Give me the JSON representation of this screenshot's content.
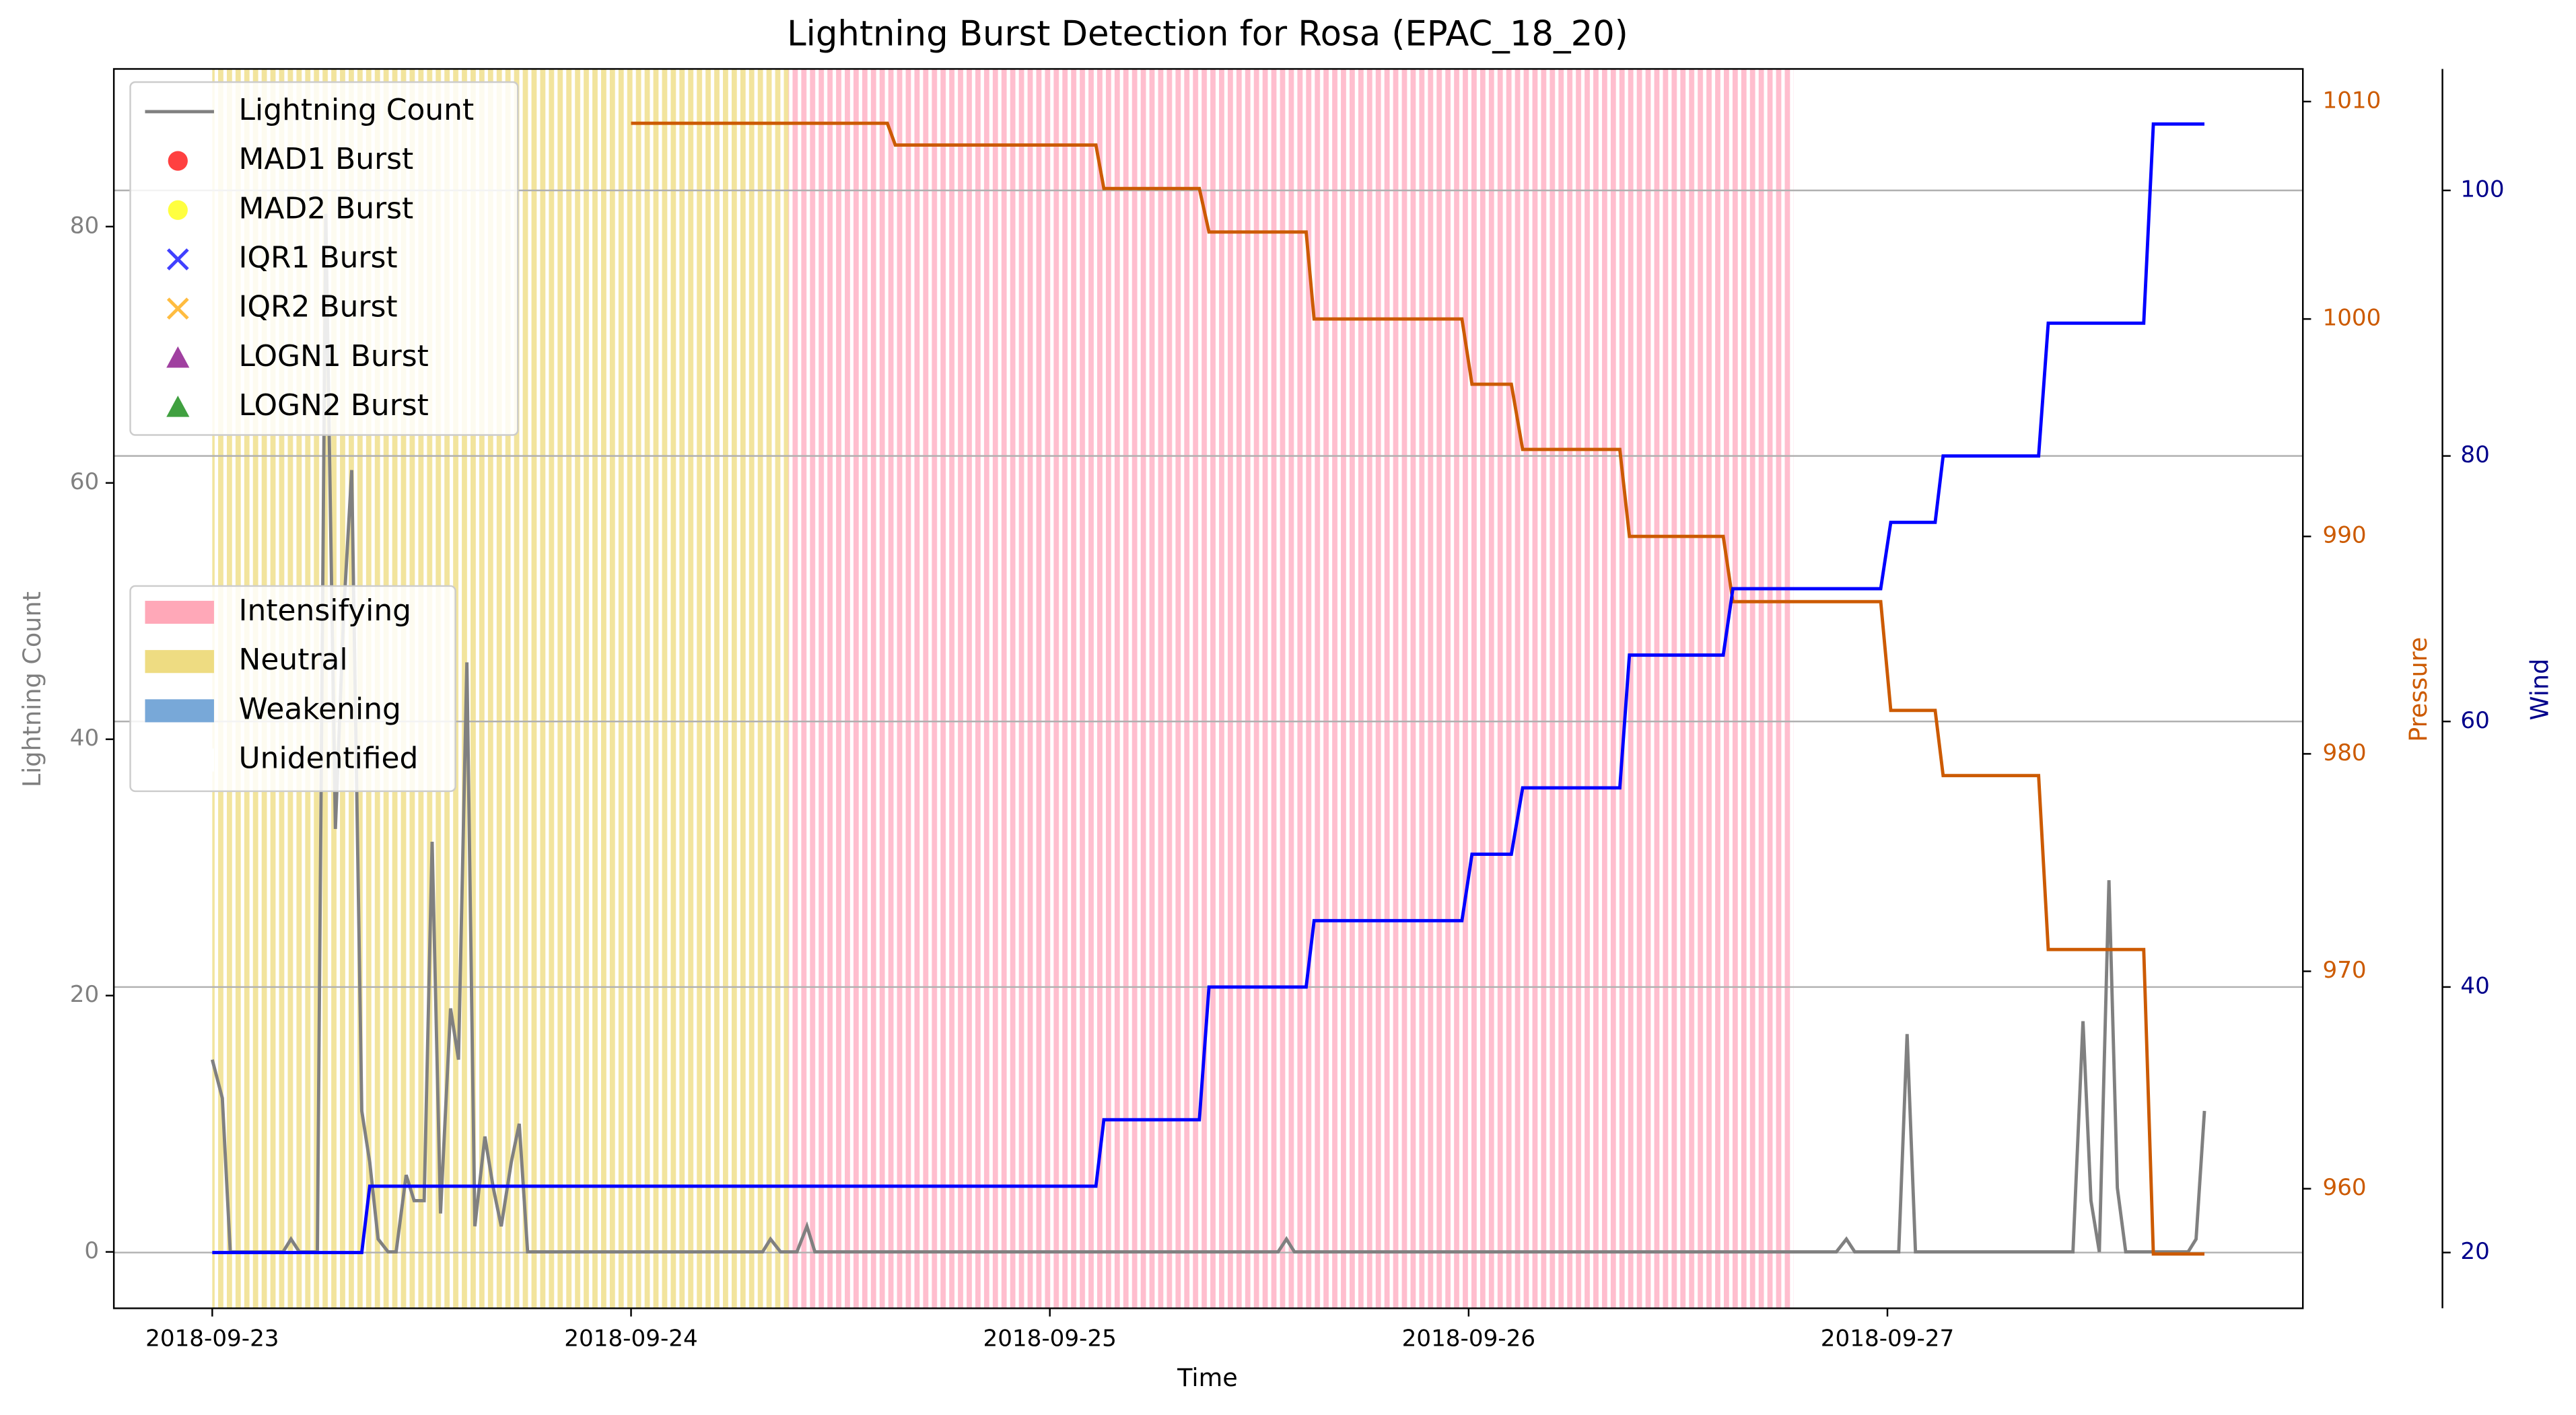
{
  "chart_data": {
    "type": "line",
    "title": "Lightning Burst Detection for Rosa (EPAC_18_20)",
    "xlabel": "Time",
    "ylabel": "Lightning Count",
    "y2label": "Pressure",
    "y3label": "Wind",
    "xlim": [
      -0.235,
      4.992
    ],
    "xticks": [
      {
        "value": 0,
        "label": "2018-09-23"
      },
      {
        "value": 1,
        "label": "2018-09-24"
      },
      {
        "value": 2,
        "label": "2018-09-25"
      },
      {
        "value": 3,
        "label": "2018-09-26"
      },
      {
        "value": 4,
        "label": "2018-09-27"
      }
    ],
    "ylim": [
      -4.4,
      92.3
    ],
    "yticks": [
      0,
      20,
      40,
      60,
      80
    ],
    "y2lim": [
      954.5,
      1011.5
    ],
    "y2ticks": [
      960,
      970,
      980,
      990,
      1000,
      1010
    ],
    "y3lim": [
      15.8,
      109.15
    ],
    "y3ticks": [
      20,
      40,
      60,
      80,
      100
    ],
    "grid": true,
    "spans": [
      {
        "start": 0,
        "end": 1.376,
        "color": "#f0e08c"
      },
      {
        "start": 1.376,
        "end": 3.776,
        "color": "#ffb3c6"
      }
    ],
    "series": [
      {
        "name": "Lightning Count",
        "color": "#808080",
        "axis": "y",
        "x": [
          0,
          0.024,
          0.043,
          0.169,
          0.188,
          0.208,
          0.251,
          0.271,
          0.294,
          0.314,
          0.333,
          0.357,
          0.376,
          0.396,
          0.42,
          0.439,
          0.463,
          0.482,
          0.506,
          0.525,
          0.545,
          0.569,
          0.588,
          0.608,
          0.627,
          0.651,
          0.671,
          0.69,
          0.714,
          0.733,
          0.753,
          1.314,
          1.333,
          1.357,
          1.396,
          1.42,
          1.439,
          2.545,
          2.565,
          2.584,
          3.878,
          3.902,
          3.922,
          4.027,
          4.047,
          4.067,
          4.443,
          4.467,
          4.486,
          4.506,
          4.529,
          4.549,
          4.569,
          4.718,
          4.737,
          4.757
        ],
        "values": [
          15,
          12,
          0,
          0,
          1,
          0,
          0,
          81,
          33,
          50,
          61,
          11,
          7,
          1,
          0,
          0,
          6,
          4,
          4,
          32,
          3,
          19,
          15,
          46,
          2,
          9,
          5,
          2,
          7,
          10,
          0,
          0,
          1,
          0,
          0,
          2,
          0,
          0,
          1,
          0,
          0,
          1,
          0,
          0,
          17,
          0,
          0,
          18,
          4,
          0,
          29,
          5,
          0,
          0,
          1,
          11
        ]
      },
      {
        "name": "Pressure",
        "color": "#cc5a00",
        "axis": "y2",
        "x": [
          1,
          1.612,
          1.631,
          2.11,
          2.129,
          2.357,
          2.38,
          2.612,
          2.631,
          2.984,
          3.008,
          3.102,
          3.129,
          3.361,
          3.384,
          3.608,
          3.631,
          3.984,
          4.008,
          4.114,
          4.133,
          4.361,
          4.384,
          4.612,
          4.635,
          4.757
        ],
        "values": [
          1009,
          1009,
          1008,
          1008,
          1006,
          1006,
          1004,
          1004,
          1000,
          1000,
          997,
          997,
          994,
          994,
          990,
          990,
          987,
          987,
          982,
          982,
          979,
          979,
          971,
          971,
          957,
          957
        ]
      },
      {
        "name": "Wind",
        "color": "#0000ff",
        "axis": "y3",
        "x": [
          0,
          0.357,
          0.376,
          2.11,
          2.129,
          2.357,
          2.38,
          2.612,
          2.631,
          2.984,
          3.008,
          3.102,
          3.129,
          3.361,
          3.384,
          3.608,
          3.631,
          3.984,
          4.008,
          4.114,
          4.133,
          4.361,
          4.384,
          4.612,
          4.635,
          4.757
        ],
        "values": [
          20,
          20,
          25,
          25,
          30,
          30,
          40,
          40,
          45,
          45,
          50,
          50,
          55,
          55,
          65,
          65,
          70,
          70,
          75,
          75,
          80,
          80,
          90,
          90,
          105,
          105
        ]
      }
    ],
    "legend": [
      {
        "name": "Lightning Count",
        "color": "#808080",
        "marker": "line"
      },
      {
        "name": "MAD1 Burst",
        "color": "#ff0000",
        "marker": "circle"
      },
      {
        "name": "MAD2 Burst",
        "color": "#ffff00",
        "marker": "circle"
      },
      {
        "name": "IQR1 Burst",
        "color": "#0000ff",
        "marker": "x"
      },
      {
        "name": "IQR2 Burst",
        "color": "#ffa500",
        "marker": "x"
      },
      {
        "name": "LOGN1 Burst",
        "color": "#800080",
        "marker": "triangle"
      },
      {
        "name": "LOGN2 Burst",
        "color": "#008000",
        "marker": "triangle"
      }
    ],
    "phase_legend": [
      {
        "name": "Intensifying",
        "color": "#ffa8b8"
      },
      {
        "name": "Neutral",
        "color": "#eedc82"
      },
      {
        "name": "Weakening",
        "color": "#78a8d8"
      },
      {
        "name": "Unidentified",
        "color": "#ffffff"
      }
    ],
    "axis_colors": {
      "y": "#808080",
      "y2": "#cc5a00",
      "y3": "#00008b"
    }
  }
}
